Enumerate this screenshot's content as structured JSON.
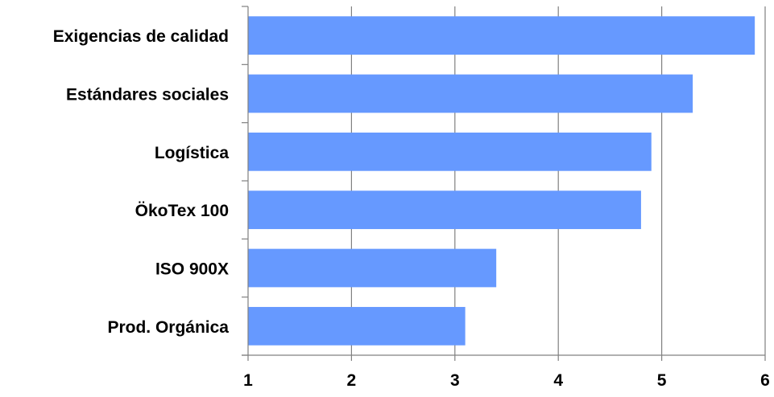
{
  "chart_data": {
    "type": "bar",
    "orientation": "horizontal",
    "categories": [
      "Exigencias de calidad",
      "Estándares sociales",
      "Logística",
      "ÖkoTex 100",
      "ISO 900X",
      "Prod. Orgánica"
    ],
    "values": [
      5.9,
      5.3,
      4.9,
      4.8,
      3.4,
      3.1
    ],
    "xlim": [
      1,
      6
    ],
    "xticks": [
      "1",
      "2",
      "3",
      "4",
      "5",
      "6"
    ],
    "title": "",
    "xlabel": "",
    "ylabel": "",
    "grid": "vertical",
    "legend": "none",
    "colors": {
      "bar": "#6699FF",
      "grid": "#808080",
      "axis": "#808080",
      "text": "#000000"
    }
  }
}
